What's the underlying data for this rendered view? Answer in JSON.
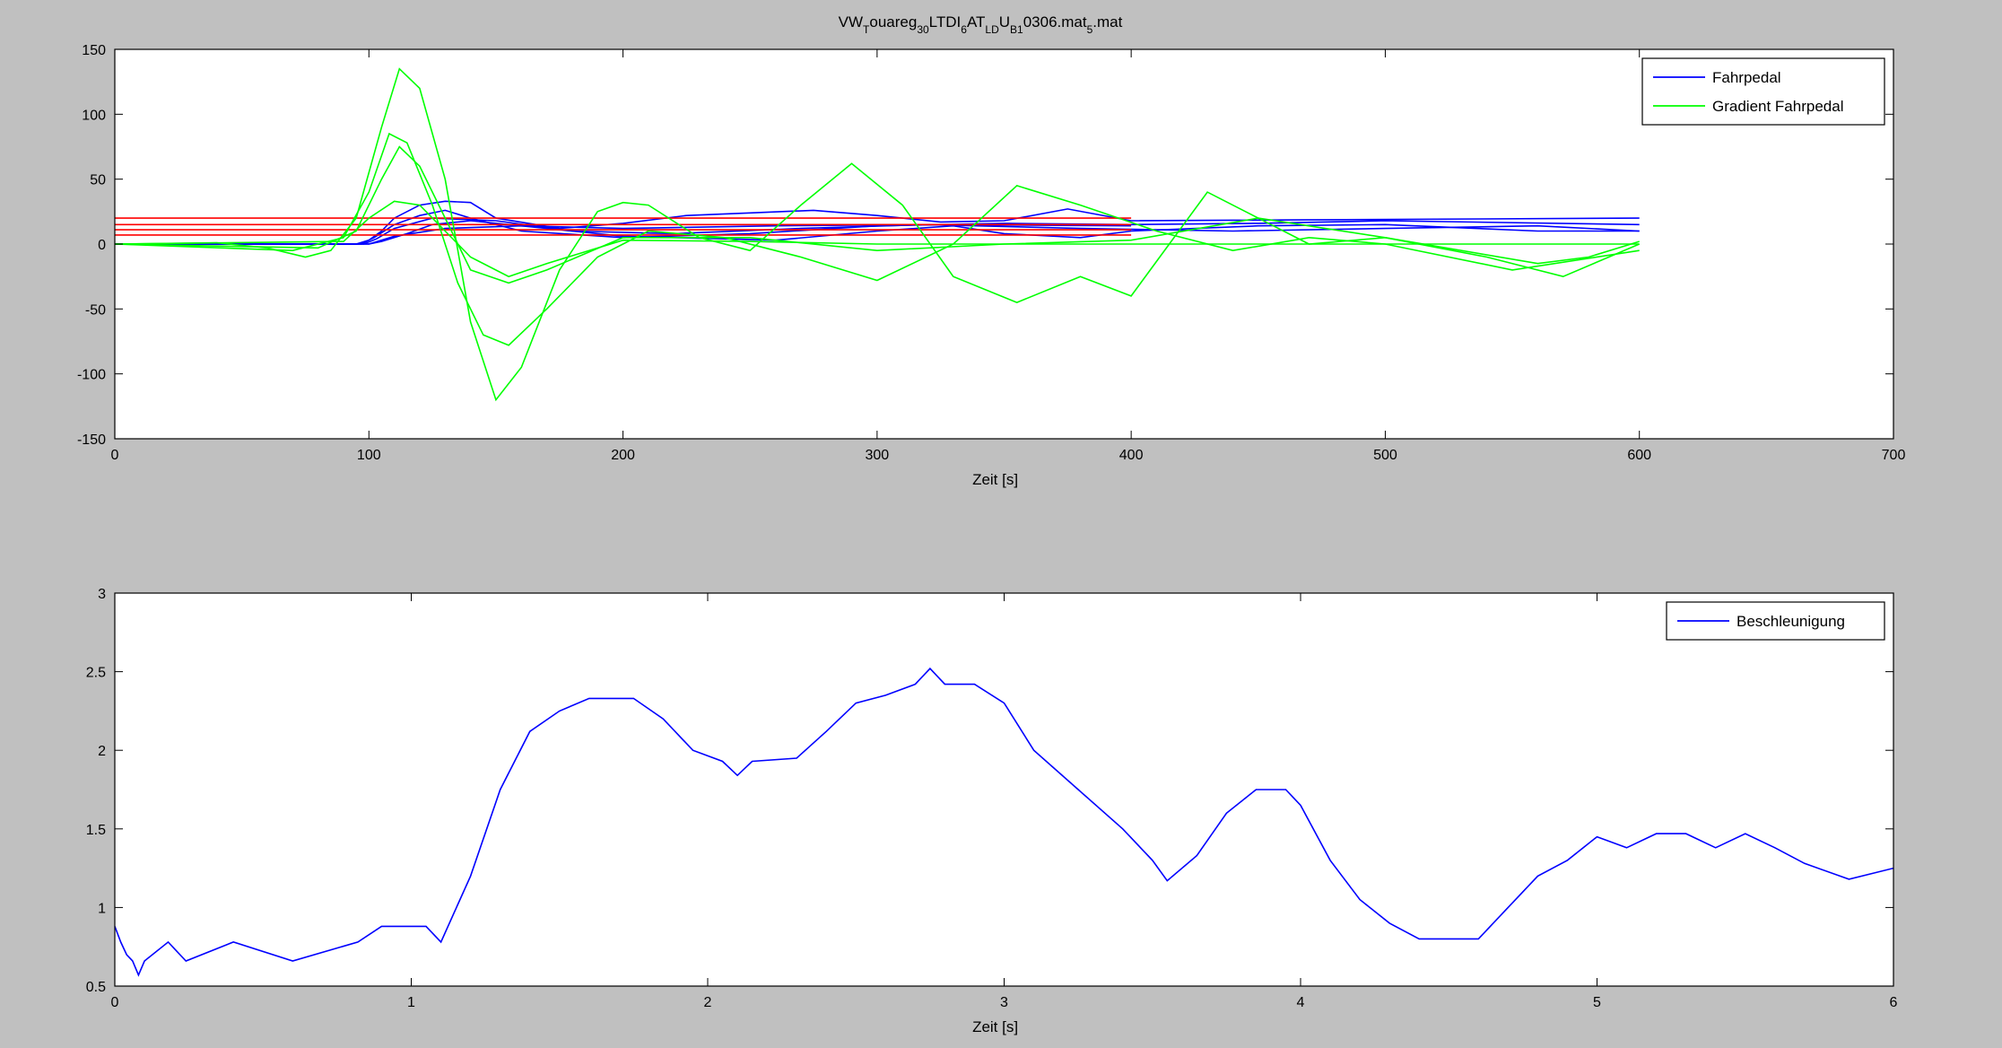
{
  "figure": {
    "background": "#c0c0c0",
    "title": {
      "parts": [
        {
          "text": "VW",
          "shift": "base"
        },
        {
          "text": "T",
          "shift": "sub"
        },
        {
          "text": "ouareg",
          "shift": "base"
        },
        {
          "text": "30",
          "shift": "sub"
        },
        {
          "text": "LTDI",
          "shift": "base"
        },
        {
          "text": "6",
          "shift": "sub"
        },
        {
          "text": "AT",
          "shift": "base"
        },
        {
          "text": "LD",
          "shift": "sub"
        },
        {
          "text": "U",
          "shift": "base"
        },
        {
          "text": "B1",
          "shift": "sub"
        },
        {
          "text": "0306.mat",
          "shift": "base"
        },
        {
          "text": "5",
          "shift": "sub"
        },
        {
          "text": ".mat",
          "shift": "base"
        }
      ]
    }
  },
  "chart_data": [
    {
      "type": "line",
      "title": "",
      "xlabel": "Zeit [s]",
      "ylabel": "",
      "xlim": [
        0,
        700
      ],
      "ylim": [
        -150,
        150
      ],
      "xticks": [
        0,
        100,
        200,
        300,
        400,
        500,
        600,
        700
      ],
      "yticks": [
        -150,
        -100,
        -50,
        0,
        50,
        100,
        150
      ],
      "grid": false,
      "legend": {
        "placement": "top-right",
        "entries": [
          {
            "label": "Fahrpedal",
            "color": "#0000ff"
          },
          {
            "label": "Gradient Fahrpedal",
            "color": "#00ff00"
          }
        ]
      },
      "series": [
        {
          "name": "Fahrpedal",
          "color": "#0000ff",
          "x": [
            0,
            95,
            100,
            105,
            110,
            120,
            130,
            140,
            150,
            175,
            200,
            225,
            250,
            275,
            300,
            325,
            350,
            375,
            400,
            600
          ],
          "y": [
            0,
            0,
            3,
            10,
            20,
            30,
            33,
            32,
            20,
            12,
            16,
            22,
            24,
            26,
            22,
            17,
            18,
            27,
            18,
            20
          ]
        },
        {
          "color": "#0000ff",
          "x": [
            0,
            97,
            102,
            110,
            120,
            130,
            140,
            160,
            200,
            250,
            300,
            350,
            400,
            450,
            500,
            600
          ],
          "y": [
            0,
            0,
            5,
            15,
            22,
            26,
            20,
            10,
            5,
            8,
            14,
            16,
            15,
            16,
            18,
            15
          ]
        },
        {
          "color": "#0000ff",
          "x": [
            0,
            100,
            105,
            115,
            125,
            140,
            170,
            200,
            240,
            260,
            300,
            330,
            350,
            380,
            400,
            450,
            500,
            560,
            600
          ],
          "y": [
            0,
            0,
            2,
            8,
            15,
            18,
            12,
            6,
            4,
            3,
            10,
            14,
            8,
            5,
            10,
            14,
            15,
            10,
            10
          ]
        },
        {
          "color": "#0000ff",
          "x": [
            0,
            98,
            103,
            110,
            125,
            150,
            180,
            220,
            270,
            320,
            380,
            440,
            500,
            560,
            600
          ],
          "y": [
            0,
            0,
            4,
            12,
            20,
            18,
            10,
            8,
            12,
            15,
            12,
            10,
            12,
            14,
            10
          ]
        },
        {
          "color": "#0000ff",
          "x": [
            0,
            100,
            110,
            130,
            160,
            200,
            260,
            320,
            400
          ],
          "y": [
            0,
            0,
            6,
            12,
            14,
            12,
            14,
            15,
            14
          ]
        },
        {
          "color": "#ff0000",
          "x": [
            0,
            400
          ],
          "y": [
            20,
            20
          ]
        },
        {
          "color": "#ff0000",
          "x": [
            0,
            400
          ],
          "y": [
            15,
            15
          ]
        },
        {
          "color": "#ff0000",
          "x": [
            0,
            400
          ],
          "y": [
            11,
            11
          ]
        },
        {
          "color": "#ff0000",
          "x": [
            0,
            400
          ],
          "y": [
            7,
            7
          ]
        },
        {
          "name": "Gradient Fahrpedal",
          "color": "#00ff00",
          "x": [
            0,
            40,
            60,
            75,
            85,
            95,
            105,
            112,
            120,
            130,
            140,
            150,
            160,
            175,
            190,
            200,
            210,
            230,
            250,
            270,
            290,
            310,
            330,
            355,
            380,
            400,
            415,
            430,
            450,
            470,
            500,
            540,
            570,
            600
          ],
          "y": [
            0,
            1,
            -3,
            -10,
            -5,
            20,
            90,
            135,
            120,
            50,
            -60,
            -120,
            -95,
            -20,
            25,
            32,
            30,
            5,
            -5,
            30,
            62,
            30,
            -25,
            -45,
            -25,
            -40,
            0,
            40,
            20,
            0,
            5,
            -10,
            -25,
            0
          ]
        },
        {
          "color": "#00ff00",
          "x": [
            0,
            70,
            90,
            100,
            108,
            115,
            125,
            135,
            145,
            155,
            170,
            190,
            210,
            240,
            270,
            300,
            330,
            355,
            380,
            410,
            440,
            470,
            500,
            550,
            600
          ],
          "y": [
            0,
            -5,
            5,
            40,
            85,
            78,
            30,
            -30,
            -70,
            -78,
            -50,
            -10,
            10,
            5,
            -10,
            -28,
            0,
            45,
            30,
            10,
            -5,
            5,
            0,
            -20,
            -5
          ]
        },
        {
          "color": "#00ff00",
          "x": [
            0,
            80,
            95,
            105,
            112,
            120,
            130,
            140,
            155,
            170,
            200,
            250,
            300,
            350,
            400,
            450,
            500,
            560,
            580,
            600
          ],
          "y": [
            0,
            -3,
            10,
            50,
            75,
            60,
            20,
            -20,
            -30,
            -20,
            5,
            5,
            -5,
            0,
            3,
            20,
            5,
            -15,
            -10,
            2
          ]
        },
        {
          "color": "#00ff00",
          "x": [
            0,
            90,
            100,
            110,
            120,
            130,
            140,
            155,
            170,
            200,
            250,
            300,
            400,
            500,
            600
          ],
          "y": [
            0,
            2,
            20,
            33,
            30,
            10,
            -10,
            -25,
            -15,
            3,
            2,
            0,
            0,
            0,
            0
          ]
        }
      ]
    },
    {
      "type": "line",
      "title": "",
      "xlabel": "Zeit [s]",
      "ylabel": "",
      "xlim": [
        0,
        6
      ],
      "ylim": [
        0.5,
        3
      ],
      "xticks": [
        0,
        1,
        2,
        3,
        4,
        5,
        6
      ],
      "yticks": [
        0.5,
        1,
        1.5,
        2,
        2.5,
        3
      ],
      "grid": false,
      "legend": {
        "placement": "top-right",
        "entries": [
          {
            "label": "Beschleunigung",
            "color": "#0000ff"
          }
        ]
      },
      "series": [
        {
          "name": "Beschleunigung",
          "color": "#0000ff",
          "x": [
            0,
            0.02,
            0.04,
            0.06,
            0.08,
            0.1,
            0.18,
            0.24,
            0.4,
            0.6,
            0.82,
            0.9,
            1.05,
            1.1,
            1.2,
            1.3,
            1.4,
            1.5,
            1.6,
            1.75,
            1.85,
            1.95,
            2.05,
            2.1,
            2.15,
            2.3,
            2.4,
            2.5,
            2.6,
            2.7,
            2.75,
            2.8,
            2.9,
            3.0,
            3.1,
            3.25,
            3.4,
            3.5,
            3.55,
            3.65,
            3.75,
            3.85,
            3.95,
            4.0,
            4.1,
            4.2,
            4.3,
            4.4,
            4.5,
            4.6,
            4.7,
            4.8,
            4.9,
            5.0,
            5.1,
            5.2,
            5.3,
            5.4,
            5.5,
            5.6,
            5.7,
            5.85,
            6.0
          ],
          "y": [
            0.88,
            0.78,
            0.7,
            0.66,
            0.57,
            0.66,
            0.78,
            0.66,
            0.78,
            0.66,
            0.78,
            0.88,
            0.88,
            0.78,
            1.2,
            1.75,
            2.12,
            2.25,
            2.33,
            2.33,
            2.2,
            2.0,
            1.93,
            1.84,
            1.93,
            1.95,
            2.12,
            2.3,
            2.35,
            2.42,
            2.52,
            2.42,
            2.42,
            2.3,
            2.0,
            1.75,
            1.5,
            1.3,
            1.17,
            1.33,
            1.6,
            1.75,
            1.75,
            1.65,
            1.3,
            1.05,
            0.9,
            0.8,
            0.8,
            0.8,
            1.0,
            1.2,
            1.3,
            1.45,
            1.38,
            1.47,
            1.47,
            1.38,
            1.47,
            1.38,
            1.28,
            1.18,
            1.25
          ]
        }
      ]
    }
  ]
}
